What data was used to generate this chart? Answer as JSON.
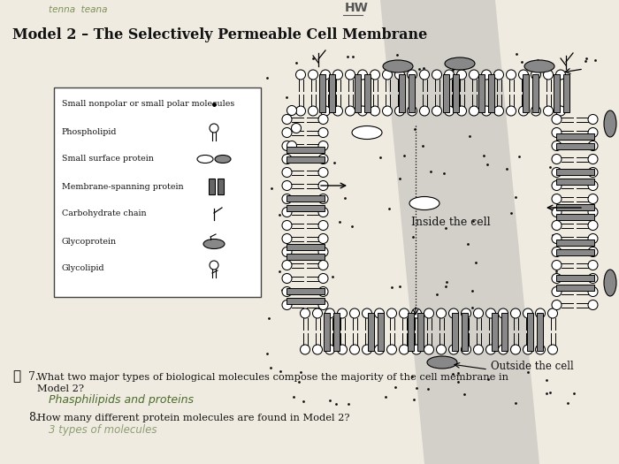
{
  "title": "Model 2 – The Selectively Permeable Cell Membrane",
  "bg_color": "#f0ebe0",
  "inside_label": "Inside the cell",
  "outside_label": "Outside the cell",
  "q7_text": "7.  What two major types of biological molecules compose the majority of the cell membrane in\n     Model 2?",
  "q7_answer": "Phasphilipids and proteins",
  "q8_text": "8.  How many different protein molecules are found in Model 2?",
  "handwriting_color": "#4a6a2a",
  "print_color": "#111111",
  "legend_labels": [
    "Small nonpolar or small polar molecules",
    "Phospholipid",
    "Small surface protein",
    "Membrane-spanning protein",
    "Carbohydrate chain",
    "Glycoprotein",
    "Glycolipid"
  ]
}
